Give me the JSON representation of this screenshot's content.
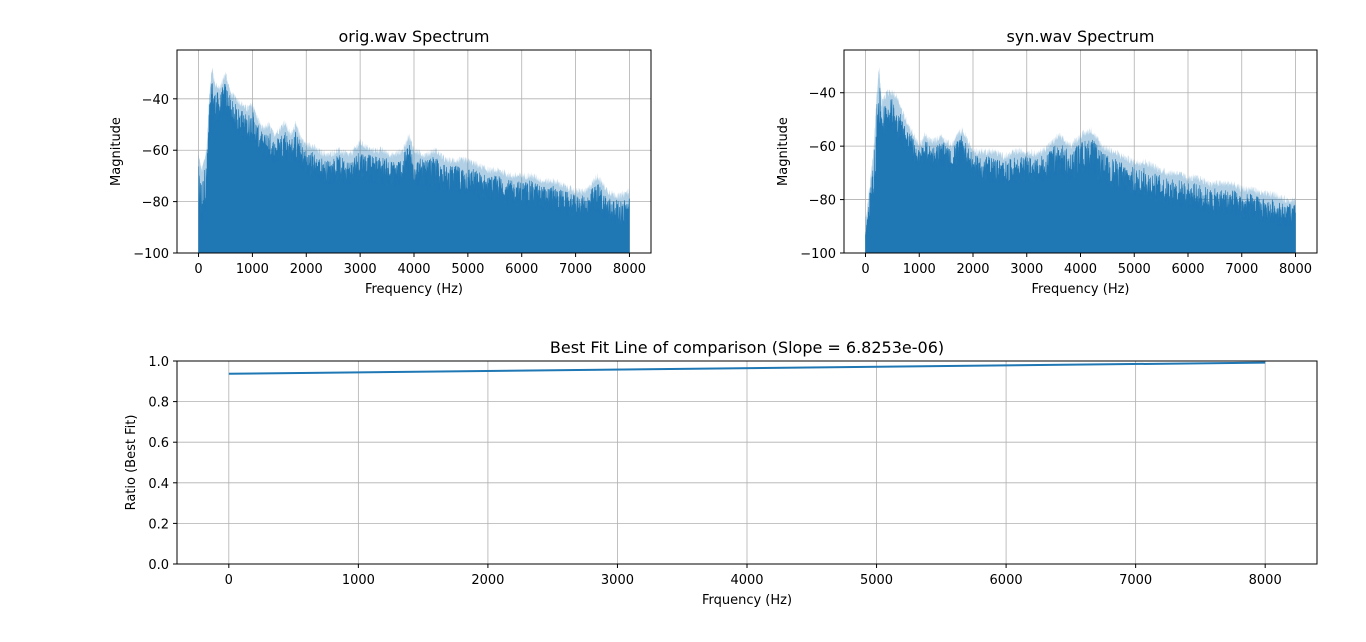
{
  "chart_data": [
    {
      "type": "area",
      "title": "orig.wav Spectrum",
      "xlabel": "Frequency (Hz)",
      "ylabel": "Magnitude",
      "xlim": [
        -400,
        8400
      ],
      "ylim": [
        -100,
        -21
      ],
      "xticks": [
        0,
        1000,
        2000,
        3000,
        4000,
        5000,
        6000,
        7000,
        8000
      ],
      "yticks": [
        -100,
        -80,
        -60,
        -40
      ],
      "grid": true,
      "color": "#1f77b4",
      "envelope": {
        "x": [
          0,
          60,
          150,
          200,
          250,
          300,
          400,
          500,
          600,
          700,
          800,
          900,
          1000,
          1100,
          1200,
          1300,
          1400,
          1500,
          1600,
          1700,
          1800,
          1900,
          2000,
          2100,
          2200,
          2400,
          2600,
          2800,
          3000,
          3200,
          3400,
          3600,
          3800,
          3900,
          4000,
          4200,
          4400,
          4600,
          4800,
          5000,
          5200,
          5400,
          5600,
          5800,
          6000,
          6200,
          6400,
          6600,
          6800,
          7000,
          7200,
          7400,
          7600,
          7800,
          8000
        ],
        "upper": [
          -62,
          -68,
          -60,
          -38,
          -28,
          -34,
          -36,
          -30,
          -38,
          -40,
          -42,
          -44,
          -42,
          -48,
          -52,
          -50,
          -54,
          -52,
          -49,
          -54,
          -50,
          -55,
          -58,
          -58,
          -60,
          -62,
          -60,
          -62,
          -57,
          -60,
          -60,
          -62,
          -60,
          -54,
          -60,
          -62,
          -60,
          -64,
          -64,
          -64,
          -66,
          -68,
          -68,
          -70,
          -70,
          -70,
          -72,
          -72,
          -74,
          -76,
          -76,
          -70,
          -76,
          -78,
          -76
        ],
        "lower": [
          -100,
          -100,
          -90,
          -72,
          -60,
          -58,
          -56,
          -55,
          -58,
          -60,
          -62,
          -64,
          -64,
          -68,
          -70,
          -70,
          -72,
          -72,
          -70,
          -72,
          -72,
          -74,
          -76,
          -78,
          -78,
          -80,
          -78,
          -80,
          -78,
          -80,
          -80,
          -82,
          -80,
          -76,
          -80,
          -82,
          -82,
          -84,
          -84,
          -84,
          -86,
          -86,
          -86,
          -88,
          -88,
          -88,
          -90,
          -90,
          -92,
          -92,
          -92,
          -92,
          -94,
          -95,
          -96
        ]
      }
    },
    {
      "type": "area",
      "title": "syn.wav Spectrum",
      "xlabel": "Frequency (Hz)",
      "ylabel": "Magnitude",
      "xlim": [
        -400,
        8400
      ],
      "ylim": [
        -100,
        -24
      ],
      "xticks": [
        0,
        1000,
        2000,
        3000,
        4000,
        5000,
        6000,
        7000,
        8000
      ],
      "yticks": [
        -100,
        -80,
        -60,
        -40
      ],
      "grid": true,
      "color": "#1f77b4",
      "envelope": {
        "x": [
          0,
          60,
          150,
          200,
          250,
          300,
          400,
          500,
          600,
          700,
          800,
          900,
          1000,
          1100,
          1200,
          1300,
          1400,
          1500,
          1600,
          1700,
          1800,
          1900,
          2000,
          2100,
          2200,
          2400,
          2600,
          2800,
          3000,
          3200,
          3400,
          3600,
          3800,
          3900,
          4000,
          4200,
          4400,
          4600,
          4800,
          5000,
          5200,
          5400,
          5600,
          5800,
          6000,
          6200,
          6400,
          6600,
          6800,
          7000,
          7200,
          7400,
          7600,
          7800,
          8000
        ],
        "upper": [
          -88,
          -78,
          -62,
          -44,
          -30,
          -44,
          -40,
          -40,
          -42,
          -48,
          -52,
          -56,
          -60,
          -56,
          -58,
          -58,
          -56,
          -58,
          -60,
          -56,
          -54,
          -58,
          -62,
          -62,
          -62,
          -62,
          -64,
          -62,
          -62,
          -63,
          -60,
          -56,
          -60,
          -58,
          -56,
          -54,
          -60,
          -62,
          -64,
          -66,
          -66,
          -68,
          -70,
          -70,
          -72,
          -72,
          -74,
          -74,
          -74,
          -76,
          -76,
          -78,
          -78,
          -80,
          -80
        ],
        "lower": [
          -100,
          -100,
          -96,
          -80,
          -66,
          -64,
          -62,
          -62,
          -66,
          -68,
          -70,
          -72,
          -74,
          -72,
          -72,
          -74,
          -74,
          -74,
          -76,
          -74,
          -72,
          -74,
          -78,
          -78,
          -80,
          -80,
          -80,
          -80,
          -80,
          -80,
          -80,
          -78,
          -80,
          -80,
          -78,
          -78,
          -82,
          -84,
          -84,
          -86,
          -86,
          -88,
          -88,
          -90,
          -90,
          -90,
          -92,
          -92,
          -92,
          -94,
          -94,
          -94,
          -95,
          -96,
          -96
        ]
      }
    },
    {
      "type": "line",
      "title": "Best Fit Line of comparison (Slope = 6.8253e-06)",
      "xlabel": "Frquency (Hz)",
      "ylabel": "Ratio (Best Fit)",
      "xlim": [
        -400,
        8400
      ],
      "ylim": [
        0.0,
        1.0
      ],
      "xticks": [
        0,
        1000,
        2000,
        3000,
        4000,
        5000,
        6000,
        7000,
        8000
      ],
      "yticks": [
        0.0,
        0.2,
        0.4,
        0.6,
        0.8,
        1.0
      ],
      "ytick_labels": [
        "0.0",
        "0.2",
        "0.4",
        "0.6",
        "0.8",
        "1.0"
      ],
      "grid": true,
      "series": [
        {
          "x": [
            0,
            8000
          ],
          "y": [
            0.937,
            0.992
          ],
          "color": "#1f77b4"
        }
      ]
    }
  ]
}
